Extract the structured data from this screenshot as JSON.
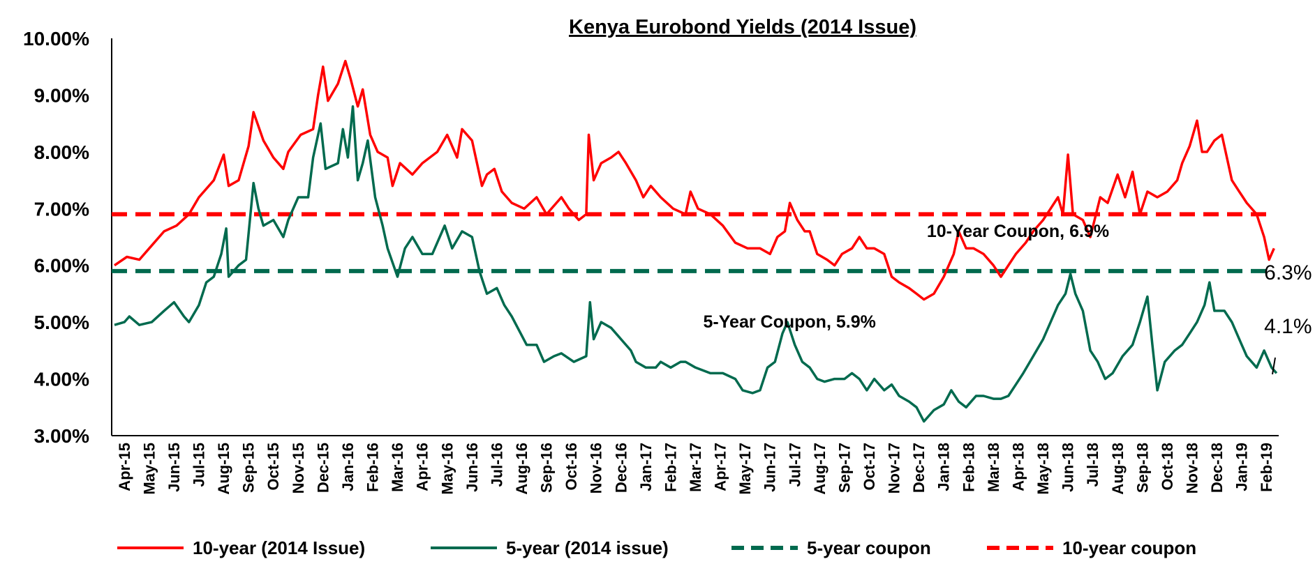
{
  "chart_data": {
    "type": "line",
    "title": "Kenya Eurobond Yields (2014 Issue)",
    "y_ticks": [
      "10.00%",
      "9.00%",
      "8.00%",
      "7.00%",
      "6.00%",
      "5.00%",
      "4.00%",
      "3.00%"
    ],
    "ylim": [
      3.0,
      10.0
    ],
    "x_categories": [
      "Apr-15",
      "May-15",
      "Jun-15",
      "Jul-15",
      "Aug-15",
      "Sep-15",
      "Oct-15",
      "Nov-15",
      "Dec-15",
      "Jan-16",
      "Feb-16",
      "Mar-16",
      "Apr-16",
      "May-16",
      "Jun-16",
      "Jul-16",
      "Aug-16",
      "Sep-16",
      "Oct-16",
      "Nov-16",
      "Dec-16",
      "Jan-17",
      "Feb-17",
      "Mar-17",
      "Apr-17",
      "May-17",
      "Jun-17",
      "Jul-17",
      "Aug-17",
      "Sep-17",
      "Oct-17",
      "Nov-17",
      "Dec-17",
      "Jan-18",
      "Feb-18",
      "Mar-18",
      "Apr-18",
      "May-18",
      "Jun-18",
      "Jul-18",
      "Aug-18",
      "Sep-18",
      "Oct-18",
      "Nov-18",
      "Dec-18",
      "Jan-19",
      "Feb-19"
    ],
    "grid": false,
    "legend_position": "bottom",
    "series": [
      {
        "name": "10-year (2014 Issue)",
        "color": "#ff0000",
        "dash": "solid",
        "points": [
          [
            0,
            6.0
          ],
          [
            0.5,
            6.15
          ],
          [
            1,
            6.1
          ],
          [
            1.4,
            6.3
          ],
          [
            2,
            6.6
          ],
          [
            2.5,
            6.7
          ],
          [
            3,
            6.9
          ],
          [
            3.4,
            7.2
          ],
          [
            4,
            7.5
          ],
          [
            4.4,
            7.95
          ],
          [
            4.6,
            7.4
          ],
          [
            5,
            7.5
          ],
          [
            5.4,
            8.1
          ],
          [
            5.6,
            8.7
          ],
          [
            6,
            8.2
          ],
          [
            6.4,
            7.9
          ],
          [
            6.8,
            7.7
          ],
          [
            7,
            8.0
          ],
          [
            7.5,
            8.3
          ],
          [
            8,
            8.4
          ],
          [
            8.2,
            9.0
          ],
          [
            8.4,
            9.5
          ],
          [
            8.6,
            8.9
          ],
          [
            9,
            9.2
          ],
          [
            9.3,
            9.6
          ],
          [
            9.5,
            9.3
          ],
          [
            9.8,
            8.8
          ],
          [
            10,
            9.1
          ],
          [
            10.3,
            8.3
          ],
          [
            10.6,
            8.0
          ],
          [
            11,
            7.9
          ],
          [
            11.2,
            7.4
          ],
          [
            11.5,
            7.8
          ],
          [
            12,
            7.6
          ],
          [
            12.4,
            7.8
          ],
          [
            13,
            8.0
          ],
          [
            13.4,
            8.3
          ],
          [
            13.8,
            7.9
          ],
          [
            14,
            8.4
          ],
          [
            14.4,
            8.2
          ],
          [
            14.8,
            7.4
          ],
          [
            15,
            7.6
          ],
          [
            15.3,
            7.7
          ],
          [
            15.6,
            7.3
          ],
          [
            16,
            7.1
          ],
          [
            16.5,
            7.0
          ],
          [
            17,
            7.2
          ],
          [
            17.4,
            6.9
          ],
          [
            18,
            7.2
          ],
          [
            18.3,
            7.0
          ],
          [
            18.7,
            6.8
          ],
          [
            19,
            6.9
          ],
          [
            19.1,
            8.3
          ],
          [
            19.3,
            7.5
          ],
          [
            19.6,
            7.8
          ],
          [
            20,
            7.9
          ],
          [
            20.3,
            8.0
          ],
          [
            20.6,
            7.8
          ],
          [
            21,
            7.5
          ],
          [
            21.3,
            7.2
          ],
          [
            21.6,
            7.4
          ],
          [
            22,
            7.2
          ],
          [
            22.5,
            7.0
          ],
          [
            23,
            6.9
          ],
          [
            23.2,
            7.3
          ],
          [
            23.5,
            7.0
          ],
          [
            24,
            6.9
          ],
          [
            24.5,
            6.7
          ],
          [
            25,
            6.4
          ],
          [
            25.5,
            6.3
          ],
          [
            26,
            6.3
          ],
          [
            26.4,
            6.2
          ],
          [
            26.7,
            6.5
          ],
          [
            27,
            6.6
          ],
          [
            27.2,
            7.1
          ],
          [
            27.5,
            6.8
          ],
          [
            27.8,
            6.6
          ],
          [
            28,
            6.6
          ],
          [
            28.3,
            6.2
          ],
          [
            28.7,
            6.1
          ],
          [
            29,
            6.0
          ],
          [
            29.3,
            6.2
          ],
          [
            29.7,
            6.3
          ],
          [
            30,
            6.5
          ],
          [
            30.3,
            6.3
          ],
          [
            30.6,
            6.3
          ],
          [
            31,
            6.2
          ],
          [
            31.3,
            5.8
          ],
          [
            31.6,
            5.7
          ],
          [
            32,
            5.6
          ],
          [
            32.3,
            5.5
          ],
          [
            32.6,
            5.4
          ],
          [
            33,
            5.5
          ],
          [
            33.4,
            5.8
          ],
          [
            33.8,
            6.2
          ],
          [
            34,
            6.6
          ],
          [
            34.3,
            6.3
          ],
          [
            34.6,
            6.3
          ],
          [
            35,
            6.2
          ],
          [
            35.4,
            6.0
          ],
          [
            35.7,
            5.8
          ],
          [
            36,
            6.0
          ],
          [
            36.3,
            6.2
          ],
          [
            36.7,
            6.4
          ],
          [
            37,
            6.6
          ],
          [
            37.4,
            6.8
          ],
          [
            37.7,
            7.0
          ],
          [
            38,
            7.2
          ],
          [
            38.2,
            6.9
          ],
          [
            38.4,
            7.95
          ],
          [
            38.6,
            6.9
          ],
          [
            39,
            6.8
          ],
          [
            39.3,
            6.5
          ],
          [
            39.7,
            7.2
          ],
          [
            40,
            7.1
          ],
          [
            40.4,
            7.6
          ],
          [
            40.7,
            7.2
          ],
          [
            41,
            7.65
          ],
          [
            41.3,
            6.9
          ],
          [
            41.6,
            7.3
          ],
          [
            42,
            7.2
          ],
          [
            42.4,
            7.3
          ],
          [
            42.8,
            7.5
          ],
          [
            43,
            7.8
          ],
          [
            43.3,
            8.1
          ],
          [
            43.6,
            8.55
          ],
          [
            43.8,
            8.0
          ],
          [
            44,
            8.0
          ],
          [
            44.3,
            8.2
          ],
          [
            44.6,
            8.3
          ],
          [
            45,
            7.5
          ],
          [
            45.3,
            7.3
          ],
          [
            45.6,
            7.1
          ],
          [
            46,
            6.9
          ],
          [
            46.3,
            6.5
          ],
          [
            46.5,
            6.1
          ],
          [
            46.7,
            6.3
          ]
        ]
      },
      {
        "name": "5-year (2014 issue)",
        "color": "#006a4e",
        "dash": "solid",
        "points": [
          [
            0,
            4.95
          ],
          [
            0.4,
            5.0
          ],
          [
            0.6,
            5.1
          ],
          [
            1,
            4.95
          ],
          [
            1.5,
            5.0
          ],
          [
            2,
            5.2
          ],
          [
            2.4,
            5.35
          ],
          [
            2.8,
            5.1
          ],
          [
            3,
            5.0
          ],
          [
            3.4,
            5.3
          ],
          [
            3.7,
            5.7
          ],
          [
            4,
            5.8
          ],
          [
            4.3,
            6.2
          ],
          [
            4.5,
            6.65
          ],
          [
            4.6,
            5.8
          ],
          [
            5,
            6.0
          ],
          [
            5.3,
            6.1
          ],
          [
            5.6,
            7.45
          ],
          [
            5.8,
            7.0
          ],
          [
            6,
            6.7
          ],
          [
            6.4,
            6.8
          ],
          [
            6.8,
            6.5
          ],
          [
            7,
            6.8
          ],
          [
            7.4,
            7.2
          ],
          [
            7.8,
            7.2
          ],
          [
            8,
            7.9
          ],
          [
            8.3,
            8.5
          ],
          [
            8.5,
            7.7
          ],
          [
            9,
            7.8
          ],
          [
            9.2,
            8.4
          ],
          [
            9.4,
            7.9
          ],
          [
            9.6,
            8.8
          ],
          [
            9.8,
            7.5
          ],
          [
            10,
            7.8
          ],
          [
            10.2,
            8.2
          ],
          [
            10.5,
            7.2
          ],
          [
            10.8,
            6.7
          ],
          [
            11,
            6.3
          ],
          [
            11.4,
            5.8
          ],
          [
            11.7,
            6.3
          ],
          [
            12,
            6.5
          ],
          [
            12.4,
            6.2
          ],
          [
            12.8,
            6.2
          ],
          [
            13,
            6.4
          ],
          [
            13.3,
            6.7
          ],
          [
            13.6,
            6.3
          ],
          [
            14,
            6.6
          ],
          [
            14.4,
            6.5
          ],
          [
            14.7,
            5.9
          ],
          [
            15,
            5.5
          ],
          [
            15.4,
            5.6
          ],
          [
            15.7,
            5.3
          ],
          [
            16,
            5.1
          ],
          [
            16.3,
            4.85
          ],
          [
            16.6,
            4.6
          ],
          [
            17,
            4.6
          ],
          [
            17.3,
            4.3
          ],
          [
            17.7,
            4.4
          ],
          [
            18,
            4.45
          ],
          [
            18.5,
            4.3
          ],
          [
            19,
            4.4
          ],
          [
            19.15,
            5.35
          ],
          [
            19.3,
            4.7
          ],
          [
            19.6,
            5.0
          ],
          [
            20,
            4.9
          ],
          [
            20.4,
            4.7
          ],
          [
            20.8,
            4.5
          ],
          [
            21,
            4.3
          ],
          [
            21.4,
            4.2
          ],
          [
            21.8,
            4.2
          ],
          [
            22,
            4.3
          ],
          [
            22.4,
            4.2
          ],
          [
            22.8,
            4.3
          ],
          [
            23,
            4.3
          ],
          [
            23.4,
            4.2
          ],
          [
            24,
            4.1
          ],
          [
            24.5,
            4.1
          ],
          [
            25,
            4.0
          ],
          [
            25.3,
            3.8
          ],
          [
            25.7,
            3.75
          ],
          [
            26,
            3.8
          ],
          [
            26.3,
            4.2
          ],
          [
            26.6,
            4.3
          ],
          [
            26.9,
            4.8
          ],
          [
            27.1,
            5.0
          ],
          [
            27.4,
            4.6
          ],
          [
            27.7,
            4.3
          ],
          [
            28,
            4.2
          ],
          [
            28.3,
            4.0
          ],
          [
            28.6,
            3.95
          ],
          [
            29,
            4.0
          ],
          [
            29.4,
            4.0
          ],
          [
            29.7,
            4.1
          ],
          [
            30,
            4.0
          ],
          [
            30.3,
            3.8
          ],
          [
            30.6,
            4.0
          ],
          [
            31,
            3.8
          ],
          [
            31.3,
            3.9
          ],
          [
            31.6,
            3.7
          ],
          [
            32,
            3.6
          ],
          [
            32.3,
            3.5
          ],
          [
            32.6,
            3.25
          ],
          [
            33,
            3.45
          ],
          [
            33.4,
            3.55
          ],
          [
            33.7,
            3.8
          ],
          [
            34,
            3.6
          ],
          [
            34.3,
            3.5
          ],
          [
            34.7,
            3.7
          ],
          [
            35,
            3.7
          ],
          [
            35.4,
            3.65
          ],
          [
            35.7,
            3.65
          ],
          [
            36,
            3.7
          ],
          [
            36.3,
            3.9
          ],
          [
            36.6,
            4.1
          ],
          [
            37,
            4.4
          ],
          [
            37.4,
            4.7
          ],
          [
            37.7,
            5.0
          ],
          [
            38,
            5.3
          ],
          [
            38.3,
            5.5
          ],
          [
            38.5,
            5.85
          ],
          [
            38.7,
            5.5
          ],
          [
            39,
            5.2
          ],
          [
            39.3,
            4.5
          ],
          [
            39.6,
            4.3
          ],
          [
            39.9,
            4.0
          ],
          [
            40.2,
            4.1
          ],
          [
            40.6,
            4.4
          ],
          [
            41,
            4.6
          ],
          [
            41.3,
            5.0
          ],
          [
            41.6,
            5.45
          ],
          [
            41.8,
            4.6
          ],
          [
            42,
            3.8
          ],
          [
            42.3,
            4.3
          ],
          [
            42.7,
            4.5
          ],
          [
            43,
            4.6
          ],
          [
            43.3,
            4.8
          ],
          [
            43.6,
            5.0
          ],
          [
            43.9,
            5.3
          ],
          [
            44.1,
            5.7
          ],
          [
            44.3,
            5.2
          ],
          [
            44.7,
            5.2
          ],
          [
            45,
            5.0
          ],
          [
            45.3,
            4.7
          ],
          [
            45.6,
            4.4
          ],
          [
            46,
            4.2
          ],
          [
            46.3,
            4.5
          ],
          [
            46.6,
            4.2
          ],
          [
            46.8,
            4.1
          ]
        ]
      },
      {
        "name": "5-year coupon",
        "color": "#006a4e",
        "dash": "dashed",
        "points": [
          [
            0,
            5.9
          ],
          [
            46.8,
            5.9
          ]
        ]
      },
      {
        "name": "10-year coupon",
        "color": "#ff0000",
        "dash": "dashed",
        "points": [
          [
            0,
            6.9
          ],
          [
            46.8,
            6.9
          ]
        ]
      }
    ],
    "annotations": [
      {
        "text": "10-Year Coupon, 6.9%",
        "x": 36.5,
        "y": 6.6
      },
      {
        "text": "5-Year Coupon, 5.9%",
        "x": 27.3,
        "y": 5.0
      }
    ],
    "end_labels": [
      {
        "text": "6.3%",
        "x": 47.6,
        "y": 5.9
      },
      {
        "text": "4.1%",
        "x": 47.6,
        "y": 4.95
      }
    ]
  }
}
